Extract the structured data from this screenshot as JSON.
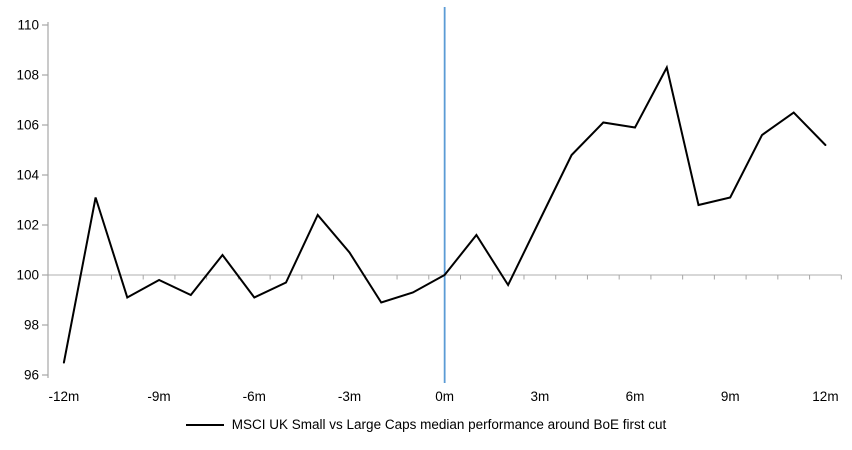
{
  "chart_data": {
    "type": "line",
    "title": "",
    "xlabel": "",
    "ylabel": "",
    "x": [
      -12,
      -11,
      -10,
      -9,
      -8,
      -7,
      -6,
      -5,
      -4,
      -3,
      -2,
      -1,
      0,
      1,
      2,
      3,
      4,
      5,
      6,
      7,
      8,
      9,
      10,
      11,
      12
    ],
    "series": [
      {
        "name": "MSCI UK Small vs Large Caps median performance around BoE first cut",
        "values": [
          96.5,
          103.1,
          99.1,
          99.8,
          99.2,
          100.8,
          99.1,
          99.7,
          102.4,
          100.9,
          98.9,
          99.3,
          100.0,
          101.6,
          99.6,
          102.2,
          104.8,
          106.1,
          105.9,
          108.3,
          102.8,
          103.1,
          105.6,
          106.5,
          105.2
        ]
      }
    ],
    "x_tick_months": [
      -12,
      -9,
      -6,
      -3,
      0,
      3,
      6,
      9,
      12
    ],
    "x_tick_labels": [
      "-12m",
      "-9m",
      "-6m",
      "-3m",
      "0m",
      "3m",
      "6m",
      "9m",
      "12m"
    ],
    "y_ticks": [
      96,
      98,
      100,
      102,
      104,
      106,
      108,
      110
    ],
    "ylim": [
      96,
      110
    ],
    "baseline_value": 100,
    "event_line_month": 0,
    "grid": "off",
    "legend_position": "bottom"
  },
  "legend": {
    "label": "MSCI UK Small vs Large Caps median performance around BoE first cut"
  },
  "colors": {
    "series": "#000000",
    "event_line": "#5B9BD5",
    "baseline": "#BFBFBF",
    "axis": "#A6A6A6",
    "text": "#000000",
    "background": "#FFFFFF"
  }
}
